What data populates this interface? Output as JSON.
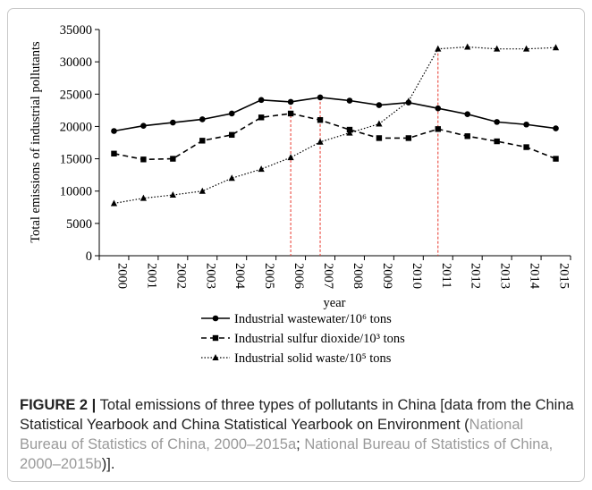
{
  "chart_data": {
    "type": "line",
    "xlabel": "year",
    "ylabel": "Total emissions of industrial pollutants",
    "ylim": [
      0,
      35000
    ],
    "yticks": [
      0,
      5000,
      10000,
      15000,
      20000,
      25000,
      30000,
      35000
    ],
    "categories": [
      "2000",
      "2001",
      "2002",
      "2003",
      "2004",
      "2005",
      "2006",
      "2007",
      "2008",
      "2009",
      "2010",
      "2011",
      "2012",
      "2013",
      "2014",
      "2015"
    ],
    "grid": false,
    "legend_position": "bottom",
    "reference_lines_at": [
      "2006",
      "2007",
      "2011"
    ],
    "reference_line_color": "#e8372c",
    "series": [
      {
        "name": "Industrial wastewater/10⁶ tons",
        "line_style": "solid",
        "marker": "circle",
        "values": [
          19300,
          20100,
          20600,
          21100,
          22000,
          24100,
          23800,
          24500,
          24000,
          23300,
          23700,
          22800,
          21900,
          20700,
          20300,
          19700
        ]
      },
      {
        "name": "Industrial sulfur dioxide/10³ tons",
        "line_style": "dashed",
        "marker": "square",
        "values": [
          15800,
          14900,
          15000,
          17800,
          18700,
          21400,
          22000,
          21000,
          19500,
          18200,
          18200,
          19600,
          18500,
          17700,
          16800,
          15000
        ]
      },
      {
        "name": "Industrial solid waste/10⁵ tons",
        "line_style": "dotted",
        "marker": "triangle",
        "values": [
          8100,
          8900,
          9400,
          10000,
          12000,
          13400,
          15200,
          17600,
          19000,
          20400,
          23900,
          32000,
          32300,
          32000,
          32000,
          32200
        ]
      }
    ]
  },
  "caption": {
    "label": "FIGURE 2 |",
    "text": " Total emissions of three types of pollutants in China [data from the China Statistical Yearbook and China Statistical Yearbook on Environment (",
    "ref1": "National Bureau of Statistics of China, 2000–2015a",
    "sep": "; ",
    "ref2": "National Bureau of Statistics of China, 2000–2015b",
    "end": ")]."
  }
}
